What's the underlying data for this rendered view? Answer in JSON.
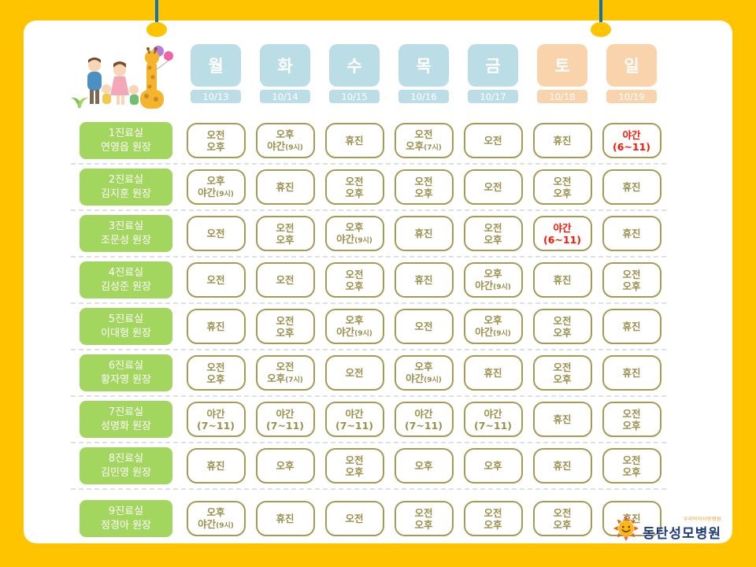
{
  "colors": {
    "frame_yellow": "#FFC400",
    "weekday_blue": "#BBDDE6",
    "weekend_peach": "#F9D3AC",
    "room_green": "#A3D65F",
    "cell_olive": "#A59B55",
    "highlight_red": "#FF1505",
    "logo_navy": "#1E3C7B",
    "pin_string_blue": "#1470B0"
  },
  "icons": {
    "corner_illustration": "family-giraffe-illustration",
    "logo_icon": "sun-logo-icon"
  },
  "header": {
    "days": [
      {
        "label": "월",
        "date": "10/13",
        "weekend": false
      },
      {
        "label": "화",
        "date": "10/14",
        "weekend": false
      },
      {
        "label": "수",
        "date": "10/15",
        "weekend": false
      },
      {
        "label": "목",
        "date": "10/16",
        "weekend": false
      },
      {
        "label": "금",
        "date": "10/17",
        "weekend": false
      },
      {
        "label": "토",
        "date": "10/18",
        "weekend": true
      },
      {
        "label": "일",
        "date": "10/19",
        "weekend": true
      }
    ]
  },
  "rows": [
    {
      "room": "1진료실",
      "doctor": "연영읍 원장",
      "cells": [
        {
          "lines": [
            "오전",
            "오후"
          ]
        },
        {
          "lines": [
            "오후",
            "야간(9시)"
          ]
        },
        {
          "lines": [
            "휴진"
          ]
        },
        {
          "lines": [
            "오전",
            "오후(7시)"
          ]
        },
        {
          "lines": [
            "오전"
          ]
        },
        {
          "lines": [
            "휴진"
          ]
        },
        {
          "lines": [
            "야간",
            "(6~11)"
          ],
          "red": true
        }
      ]
    },
    {
      "room": "2진료실",
      "doctor": "김지훈 원장",
      "cells": [
        {
          "lines": [
            "오후",
            "야간(9시)"
          ]
        },
        {
          "lines": [
            "휴진"
          ]
        },
        {
          "lines": [
            "오전",
            "오후"
          ]
        },
        {
          "lines": [
            "오전",
            "오후"
          ]
        },
        {
          "lines": [
            "오전"
          ]
        },
        {
          "lines": [
            "오전",
            "오후"
          ]
        },
        {
          "lines": [
            "휴진"
          ]
        }
      ]
    },
    {
      "room": "3진료실",
      "doctor": "조문성 원장",
      "cells": [
        {
          "lines": [
            "오전"
          ]
        },
        {
          "lines": [
            "오전",
            "오후"
          ]
        },
        {
          "lines": [
            "오후",
            "야간(9시)"
          ]
        },
        {
          "lines": [
            "휴진"
          ]
        },
        {
          "lines": [
            "오전",
            "오후"
          ]
        },
        {
          "lines": [
            "야간",
            "(6~11)"
          ],
          "red": true
        },
        {
          "lines": [
            "휴진"
          ]
        }
      ]
    },
    {
      "room": "4진료실",
      "doctor": "김성준 원장",
      "cells": [
        {
          "lines": [
            "오전"
          ]
        },
        {
          "lines": [
            "오전"
          ]
        },
        {
          "lines": [
            "오전",
            "오후"
          ]
        },
        {
          "lines": [
            "휴진"
          ]
        },
        {
          "lines": [
            "오후",
            "야간(9시)"
          ]
        },
        {
          "lines": [
            "휴진"
          ]
        },
        {
          "lines": [
            "오전",
            "오후"
          ]
        }
      ]
    },
    {
      "room": "5진료실",
      "doctor": "이대형 원장",
      "cells": [
        {
          "lines": [
            "휴진"
          ]
        },
        {
          "lines": [
            "오전",
            "오후"
          ]
        },
        {
          "lines": [
            "오후",
            "야간(9시)"
          ]
        },
        {
          "lines": [
            "오전"
          ]
        },
        {
          "lines": [
            "오후",
            "야간(9시)"
          ]
        },
        {
          "lines": [
            "오전",
            "오후"
          ]
        },
        {
          "lines": [
            "휴진"
          ]
        }
      ]
    },
    {
      "room": "6진료실",
      "doctor": "황자영 원장",
      "cells": [
        {
          "lines": [
            "오전",
            "오후"
          ]
        },
        {
          "lines": [
            "오전",
            "오후(7시)"
          ]
        },
        {
          "lines": [
            "오전"
          ]
        },
        {
          "lines": [
            "오후",
            "야간(9시)"
          ]
        },
        {
          "lines": [
            "휴진"
          ]
        },
        {
          "lines": [
            "오전",
            "오후"
          ]
        },
        {
          "lines": [
            "휴진"
          ]
        }
      ]
    },
    {
      "room": "7진료실",
      "doctor": "성명화 원장",
      "cells": [
        {
          "lines": [
            "야간",
            "(7~11)"
          ]
        },
        {
          "lines": [
            "야간",
            "(7~11)"
          ]
        },
        {
          "lines": [
            "야간",
            "(7~11)"
          ]
        },
        {
          "lines": [
            "야간",
            "(7~11)"
          ]
        },
        {
          "lines": [
            "야간",
            "(7~11)"
          ]
        },
        {
          "lines": [
            "휴진"
          ]
        },
        {
          "lines": [
            "오전",
            "오후"
          ]
        }
      ]
    },
    {
      "room": "8진료실",
      "doctor": "김민영 원장",
      "cells": [
        {
          "lines": [
            "휴진"
          ]
        },
        {
          "lines": [
            "오후"
          ]
        },
        {
          "lines": [
            "오전",
            "오후"
          ]
        },
        {
          "lines": [
            "오후"
          ]
        },
        {
          "lines": [
            "오후"
          ]
        },
        {
          "lines": [
            "휴진"
          ]
        },
        {
          "lines": [
            "오전",
            "오후"
          ]
        }
      ]
    },
    {
      "room": "9진료실",
      "doctor": "정경아 원장",
      "cells": [
        {
          "lines": [
            "오후",
            "야간(9시)"
          ]
        },
        {
          "lines": [
            "휴진"
          ]
        },
        {
          "lines": [
            "오전"
          ]
        },
        {
          "lines": [
            "오전",
            "오후"
          ]
        },
        {
          "lines": [
            "오전",
            "오후"
          ]
        },
        {
          "lines": [
            "오전",
            "오후"
          ]
        },
        {
          "lines": [
            "휴진"
          ]
        }
      ]
    }
  ],
  "logo": {
    "tagline": "우리아이사랑병원",
    "name": "동탄성모병원"
  }
}
